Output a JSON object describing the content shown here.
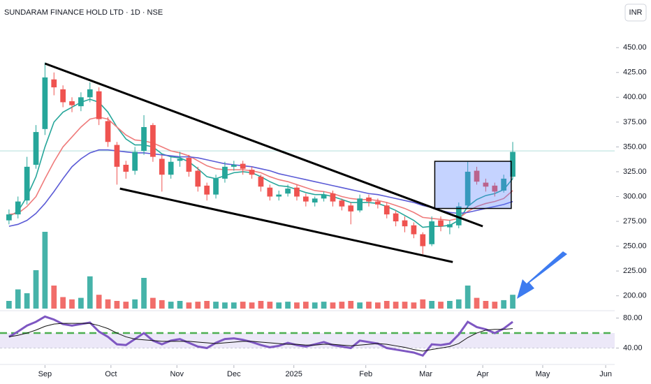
{
  "chart_data": {
    "type": "candlestick",
    "title": "SUNDARAM FINANCE HOLD LTD · 1D · NSE",
    "currency": "INR",
    "x": [
      3,
      6,
      9,
      12,
      15,
      18,
      21,
      24,
      27,
      30,
      33,
      36,
      39,
      42,
      45,
      48,
      51,
      54,
      57,
      60,
      63,
      66,
      69,
      72,
      75,
      78,
      81,
      84,
      87,
      90,
      93,
      96,
      99,
      102,
      105,
      108,
      111,
      114,
      117,
      120,
      123,
      126,
      129,
      132,
      135,
      138,
      141,
      144,
      147,
      150,
      153,
      156,
      159,
      162,
      165,
      168,
      171
    ],
    "open": [
      276,
      282,
      296,
      332,
      368,
      418,
      408,
      396,
      391,
      400,
      406,
      376,
      352,
      332,
      326,
      346,
      372,
      338,
      322,
      336,
      339,
      326,
      311,
      302,
      318,
      330,
      333,
      327,
      320,
      309,
      300,
      303,
      309,
      300,
      294,
      298,
      303,
      296,
      291,
      286,
      299,
      295,
      291,
      283,
      276,
      271,
      262,
      252,
      276,
      269,
      271,
      291,
      326,
      314,
      311,
      306,
      320
    ],
    "high": [
      287,
      300,
      340,
      372,
      435,
      425,
      412,
      400,
      405,
      415,
      410,
      380,
      355,
      336,
      350,
      382,
      374,
      342,
      340,
      345,
      342,
      330,
      314,
      322,
      335,
      336,
      336,
      330,
      322,
      312,
      306,
      312,
      312,
      303,
      300,
      305,
      306,
      298,
      294,
      302,
      302,
      298,
      294,
      286,
      280,
      274,
      264,
      280,
      280,
      276,
      294,
      335,
      330,
      318,
      314,
      322,
      355
    ],
    "low": [
      272,
      278,
      292,
      328,
      362,
      402,
      390,
      385,
      386,
      395,
      372,
      350,
      312,
      318,
      322,
      342,
      335,
      305,
      318,
      330,
      320,
      305,
      296,
      298,
      314,
      326,
      322,
      318,
      305,
      296,
      296,
      300,
      296,
      290,
      290,
      295,
      290,
      286,
      272,
      284,
      290,
      288,
      278,
      270,
      264,
      258,
      242,
      250,
      265,
      262,
      268,
      288,
      312,
      305,
      300,
      304,
      318
    ],
    "close": [
      282,
      295,
      330,
      365,
      420,
      410,
      395,
      392,
      400,
      408,
      378,
      355,
      330,
      325,
      345,
      370,
      340,
      322,
      335,
      338,
      325,
      310,
      302,
      318,
      330,
      332,
      328,
      322,
      310,
      300,
      302,
      308,
      300,
      295,
      298,
      302,
      295,
      290,
      285,
      298,
      295,
      292,
      282,
      275,
      270,
      262,
      250,
      275,
      270,
      272,
      290,
      325,
      315,
      310,
      305,
      318,
      345
    ],
    "up_color": "#26a69a",
    "down_color": "#ef5350",
    "volume": [
      10,
      25,
      20,
      50,
      100,
      30,
      15,
      12,
      14,
      42,
      18,
      12,
      10,
      9,
      12,
      40,
      14,
      11,
      9,
      10,
      8,
      9,
      10,
      9,
      8,
      8,
      9,
      8,
      10,
      9,
      8,
      9,
      8,
      9,
      8,
      9,
      8,
      9,
      10,
      8,
      9,
      8,
      10,
      9,
      9,
      8,
      12,
      10,
      9,
      10,
      12,
      30,
      14,
      10,
      9,
      11,
      18
    ],
    "volume_ylim": [
      0,
      100
    ],
    "series": [
      {
        "color": "#26a69a",
        "values": [
          280,
          285,
          300,
          320,
          350,
          375,
          385,
          390,
          395,
          398,
          395,
          385,
          370,
          358,
          352,
          352,
          350,
          343,
          340,
          339,
          335,
          328,
          320,
          318,
          321,
          324,
          325,
          324,
          320,
          315,
          311,
          310,
          307,
          304,
          302,
          302,
          300,
          297,
          294,
          294,
          294,
          293,
          290,
          286,
          281,
          276,
          269,
          270,
          270,
          271,
          276,
          290,
          297,
          301,
          303,
          307,
          318
        ]
      },
      {
        "color": "#ef7b7b",
        "values": [
          282,
          283,
          290,
          300,
          318,
          335,
          350,
          360,
          370,
          378,
          380,
          378,
          370,
          362,
          357,
          356,
          354,
          350,
          346,
          344,
          341,
          336,
          331,
          328,
          327,
          327,
          327,
          326,
          324,
          320,
          317,
          315,
          312,
          309,
          306,
          305,
          303,
          300,
          298,
          297,
          297,
          296,
          294,
          291,
          288,
          284,
          279,
          278,
          277,
          276,
          278,
          285,
          290,
          293,
          295,
          298,
          306
        ]
      },
      {
        "color": "#5b5bd6",
        "values": [
          270,
          272,
          276,
          283,
          293,
          305,
          318,
          330,
          338,
          344,
          347,
          347,
          346,
          345,
          344,
          344,
          343,
          342,
          341,
          340,
          340,
          339,
          337,
          335,
          333,
          332,
          331,
          330,
          328,
          326,
          323,
          321,
          319,
          317,
          315,
          313,
          311,
          309,
          307,
          305,
          303,
          302,
          300,
          298,
          296,
          294,
          291,
          289,
          286,
          284,
          283,
          284,
          286,
          288,
          290,
          292,
          295
        ]
      }
    ],
    "price_line": 346,
    "trendlines": [
      {
        "x": [
          15,
          161
        ],
        "y": [
          434,
          270
        ]
      },
      {
        "x": [
          40,
          151
        ],
        "y": [
          308,
          234
        ]
      }
    ],
    "box": {
      "x": [
        145,
        170.5
      ],
      "y": [
        288,
        335.5
      ]
    },
    "xlim": [
      0,
      205
    ],
    "xticks": [
      {
        "value": 15,
        "label": "Sep"
      },
      {
        "value": 37,
        "label": "Oct"
      },
      {
        "value": 59,
        "label": "Nov"
      },
      {
        "value": 78,
        "label": "Dec"
      },
      {
        "value": 98,
        "label": "2025"
      },
      {
        "value": 122,
        "label": "Feb"
      },
      {
        "value": 142,
        "label": "Mar"
      },
      {
        "value": 161,
        "label": "Apr"
      },
      {
        "value": 181,
        "label": "May"
      },
      {
        "value": 202,
        "label": "Jun"
      }
    ],
    "ylim": [
      185,
      498
    ],
    "yticks": [
      {
        "value": 200,
        "label": "200.00"
      },
      {
        "value": 225,
        "label": "225.00"
      },
      {
        "value": 250,
        "label": "250.00"
      },
      {
        "value": 275,
        "label": "275.00"
      },
      {
        "value": 300,
        "label": "300.00"
      },
      {
        "value": 325,
        "label": "325.00"
      },
      {
        "value": 350,
        "label": "350.00"
      },
      {
        "value": 375,
        "label": "375.00"
      },
      {
        "value": 400,
        "label": "400.00"
      },
      {
        "value": 425,
        "label": "425.00"
      },
      {
        "value": 450,
        "label": "450.00"
      }
    ],
    "rsi": {
      "color": "#7e57c2",
      "ma_color": "#111111",
      "values": [
        55,
        62,
        70,
        75,
        82,
        78,
        72,
        70,
        72,
        74,
        62,
        55,
        45,
        44,
        52,
        60,
        50,
        45,
        50,
        52,
        47,
        42,
        40,
        47,
        52,
        53,
        51,
        48,
        44,
        41,
        43,
        47,
        44,
        42,
        45,
        48,
        44,
        42,
        40,
        50,
        48,
        46,
        40,
        38,
        36,
        34,
        30,
        45,
        44,
        46,
        58,
        75,
        68,
        65,
        60,
        66,
        75
      ],
      "ma": [
        55,
        57,
        60,
        64,
        69,
        72,
        73,
        73,
        73,
        73,
        70,
        66,
        60,
        55,
        52,
        51,
        50,
        49,
        49,
        49,
        49,
        48,
        47,
        46,
        47,
        48,
        49,
        49,
        48,
        47,
        46,
        45,
        45,
        44,
        44,
        45,
        45,
        44,
        43,
        44,
        45,
        46,
        45,
        43,
        41,
        38,
        36,
        38,
        40,
        42,
        46,
        54,
        60,
        64,
        65,
        65,
        66
      ],
      "band": [
        40,
        60
      ],
      "band_color": "#ece8f8",
      "level_color": "#4caf50",
      "ylim": [
        20,
        88
      ],
      "yticks": [
        {
          "value": 40,
          "label": "40.00"
        },
        {
          "value": 80,
          "label": "80.00"
        }
      ]
    }
  }
}
